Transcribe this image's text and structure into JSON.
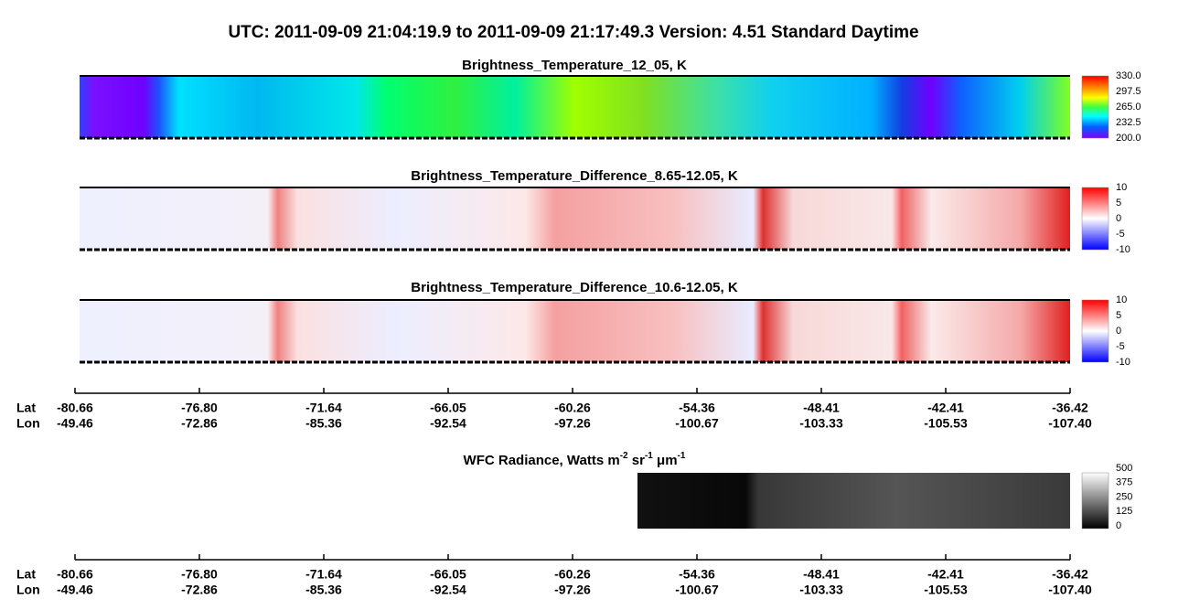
{
  "title": "UTC:  2011-09-09   21:04:19.9  to  2011-09-09   21:17:49.3    Version: 4.51  Standard Daytime",
  "panels": [
    {
      "title": "Brightness_Temperature_12_05, K",
      "colorbar_ticks": [
        "330.0",
        "297.5",
        "265.0",
        "232.5",
        "200.0"
      ]
    },
    {
      "title": "Brightness_Temperature_Difference_8.65-12.05, K",
      "colorbar_ticks": [
        "10",
        "5",
        "0",
        "-5",
        "-10"
      ]
    },
    {
      "title": "Brightness_Temperature_Difference_10.6-12.05, K",
      "colorbar_ticks": [
        "10",
        "5",
        "0",
        "-5",
        "-10"
      ]
    }
  ],
  "wfc_panel": {
    "title": {
      "text": "WFC Radiance, Watts m",
      "sup1": "-2",
      "mid1": " sr",
      "sup2": "-1",
      "mid2": " μm",
      "sup3": "-1"
    },
    "colorbar_ticks": [
      "500",
      "375",
      "250",
      "125",
      "0"
    ]
  },
  "axis": {
    "lat_label": "Lat",
    "lon_label": "Lon",
    "lat": [
      "-80.66",
      "-76.80",
      "-71.64",
      "-66.05",
      "-60.26",
      "-54.36",
      "-48.41",
      "-42.41",
      "-36.42"
    ],
    "lon": [
      "-49.46",
      "-72.86",
      "-85.36",
      "-92.54",
      "-97.26",
      "-100.67",
      "-103.33",
      "-105.53",
      "-107.40"
    ]
  }
}
